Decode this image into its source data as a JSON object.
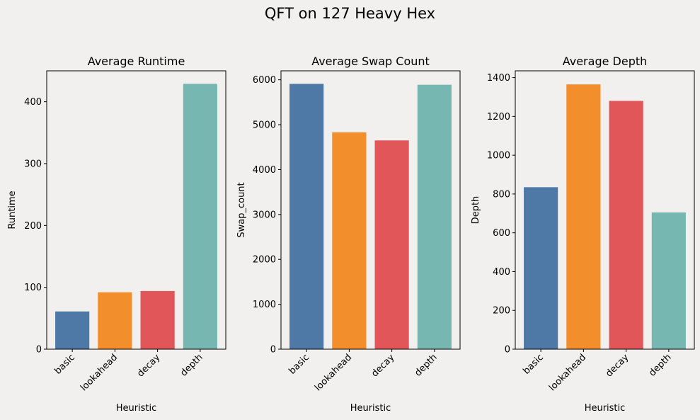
{
  "figure": {
    "title": "QFT on 127 Heavy Hex"
  },
  "colors": [
    "#4e79a7",
    "#f28e2b",
    "#e15759",
    "#76b7b2"
  ],
  "chart_data": [
    {
      "type": "bar",
      "title": "Average Runtime",
      "xlabel": "Heuristic",
      "ylabel": "Runtime",
      "categories": [
        "basic",
        "lookahead",
        "decay",
        "depth"
      ],
      "values": [
        61,
        92,
        94,
        429
      ],
      "ylim": [
        0,
        450
      ],
      "yticks": [
        0,
        100,
        200,
        300,
        400
      ]
    },
    {
      "type": "bar",
      "title": "Average Swap Count",
      "xlabel": "Heuristic",
      "ylabel": "Swap_count",
      "categories": [
        "basic",
        "lookahead",
        "decay",
        "depth"
      ],
      "values": [
        5910,
        4830,
        4650,
        5890
      ],
      "ylim": [
        0,
        6200
      ],
      "yticks": [
        0,
        1000,
        2000,
        3000,
        4000,
        5000,
        6000
      ]
    },
    {
      "type": "bar",
      "title": "Average Depth",
      "xlabel": "Heuristic",
      "ylabel": "Depth",
      "categories": [
        "basic",
        "lookahead",
        "decay",
        "depth"
      ],
      "values": [
        835,
        1365,
        1280,
        705
      ],
      "ylim": [
        0,
        1435
      ],
      "yticks": [
        0,
        200,
        400,
        600,
        800,
        1000,
        1200,
        1400
      ]
    }
  ]
}
